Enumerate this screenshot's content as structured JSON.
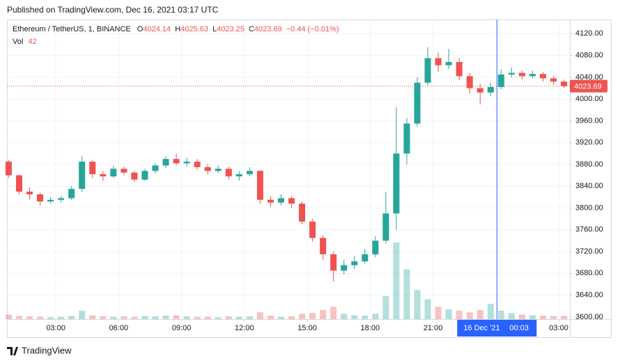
{
  "header": "Published on TradingView.com, Dec 16, 2021 03:17 UTC",
  "footer": "TradingView",
  "chart_data": {
    "type": "candlestick",
    "title": "Ethereum / TetherUS, 1, BINANCE",
    "legend": {
      "open_label": "O",
      "open": 4024.14,
      "high_label": "H",
      "high": 4025.63,
      "low_label": "L",
      "low": 4023.25,
      "close_label": "C",
      "close": 4023.69,
      "change": "−0.44 (−0.01%)",
      "volume_label": "Vol",
      "volume": 42
    },
    "last_price": 4023.69,
    "crosshair": {
      "x": 24.05,
      "date": "16 Dec '21",
      "time": "00:03"
    },
    "up_color": "#26a69a",
    "down_color": "#ef5350",
    "xlim": [
      0.67,
      27.53
    ],
    "ylim": [
      3596,
      4146
    ],
    "xticks": [
      {
        "value": 3,
        "label": "03:00"
      },
      {
        "value": 6,
        "label": "06:00"
      },
      {
        "value": 9,
        "label": "09:00"
      },
      {
        "value": 12,
        "label": "12:00"
      },
      {
        "value": 15,
        "label": "15:00"
      },
      {
        "value": 18,
        "label": "18:00"
      },
      {
        "value": 21,
        "label": "21:00"
      },
      {
        "value": 27,
        "label": "03:00"
      }
    ],
    "yticks": [
      {
        "value": 3600,
        "label": "3600.00"
      },
      {
        "value": 3640,
        "label": "3640.00"
      },
      {
        "value": 3680,
        "label": "3680.00"
      },
      {
        "value": 3720,
        "label": "3720.00"
      },
      {
        "value": 3760,
        "label": "3760.00"
      },
      {
        "value": 3800,
        "label": "3800.00"
      },
      {
        "value": 3840,
        "label": "3840.00"
      },
      {
        "value": 3880,
        "label": "3880.00"
      },
      {
        "value": 3920,
        "label": "3920.00"
      },
      {
        "value": 3960,
        "label": "3960.00"
      },
      {
        "value": 4000,
        "label": "4000.00"
      },
      {
        "value": 4040,
        "label": "4040.00"
      },
      {
        "value": 4080,
        "label": "4080.00"
      },
      {
        "value": 4120,
        "label": "4120.00"
      }
    ],
    "grid": true,
    "x": [
      0.75,
      1.25,
      1.75,
      2.25,
      2.75,
      3.25,
      3.75,
      4.25,
      4.75,
      5.25,
      5.75,
      6.25,
      6.75,
      7.25,
      7.75,
      8.25,
      8.75,
      9.25,
      9.75,
      10.25,
      10.75,
      11.25,
      11.75,
      12.25,
      12.75,
      13.25,
      13.75,
      14.25,
      14.75,
      15.25,
      15.75,
      16.25,
      16.75,
      17.25,
      17.75,
      18.25,
      18.75,
      19.25,
      19.75,
      20.25,
      20.75,
      21.25,
      21.75,
      22.25,
      22.75,
      23.25,
      23.75,
      24.25,
      24.75,
      25.25,
      25.75,
      26.25,
      26.75,
      27.25
    ],
    "open": [
      3885,
      3860,
      3830,
      3825,
      3812,
      3815,
      3818,
      3835,
      3885,
      3862,
      3858,
      3872,
      3865,
      3852,
      3868,
      3878,
      3890,
      3882,
      3885,
      3875,
      3868,
      3872,
      3858,
      3862,
      3868,
      3815,
      3810,
      3818,
      3808,
      3775,
      3745,
      3715,
      3685,
      3695,
      3702,
      3715,
      3740,
      3790,
      3900,
      3955,
      4030,
      4075,
      4062,
      4068,
      4042,
      4020,
      4012,
      4022,
      4045,
      4048,
      4042,
      4046,
      4038,
      4032
    ],
    "high": [
      3888,
      3862,
      3838,
      3828,
      3820,
      3822,
      3840,
      3895,
      3888,
      3868,
      3878,
      3876,
      3868,
      3872,
      3882,
      3895,
      3900,
      3892,
      3890,
      3880,
      3878,
      3876,
      3868,
      3875,
      3870,
      3822,
      3825,
      3822,
      3812,
      3780,
      3750,
      3720,
      3705,
      3712,
      3725,
      3748,
      3830,
      3985,
      3965,
      4040,
      4095,
      4085,
      4092,
      4075,
      4048,
      4028,
      4030,
      4055,
      4058,
      4052,
      4052,
      4050,
      4042,
      4036
    ],
    "low": [
      3855,
      3825,
      3815,
      3805,
      3808,
      3810,
      3815,
      3830,
      3855,
      3850,
      3855,
      3860,
      3848,
      3850,
      3864,
      3874,
      3878,
      3876,
      3870,
      3862,
      3864,
      3852,
      3850,
      3858,
      3808,
      3802,
      3805,
      3800,
      3770,
      3738,
      3705,
      3665,
      3678,
      3688,
      3698,
      3710,
      3735,
      3760,
      3880,
      3950,
      4025,
      4050,
      4055,
      4035,
      4010,
      3990,
      4005,
      4018,
      4040,
      4036,
      4038,
      4032,
      4026,
      4020
    ],
    "close": [
      3860,
      3830,
      3825,
      3812,
      3815,
      3818,
      3835,
      3885,
      3862,
      3858,
      3872,
      3865,
      3852,
      3868,
      3878,
      3890,
      3882,
      3885,
      3875,
      3868,
      3872,
      3858,
      3862,
      3868,
      3815,
      3810,
      3818,
      3808,
      3775,
      3745,
      3715,
      3685,
      3695,
      3702,
      3715,
      3740,
      3790,
      3900,
      3955,
      4030,
      4075,
      4062,
      4068,
      4042,
      4020,
      4012,
      4022,
      4045,
      4048,
      4042,
      4046,
      4038,
      4032,
      4023.69
    ],
    "volume": [
      60,
      40,
      35,
      30,
      25,
      30,
      40,
      110,
      50,
      35,
      30,
      35,
      30,
      40,
      35,
      45,
      50,
      35,
      30,
      30,
      25,
      35,
      30,
      35,
      90,
      45,
      30,
      35,
      70,
      80,
      120,
      160,
      70,
      50,
      45,
      70,
      300,
      1000,
      650,
      380,
      260,
      160,
      130,
      110,
      90,
      120,
      200,
      110,
      80,
      60,
      50,
      45,
      40,
      42
    ]
  }
}
